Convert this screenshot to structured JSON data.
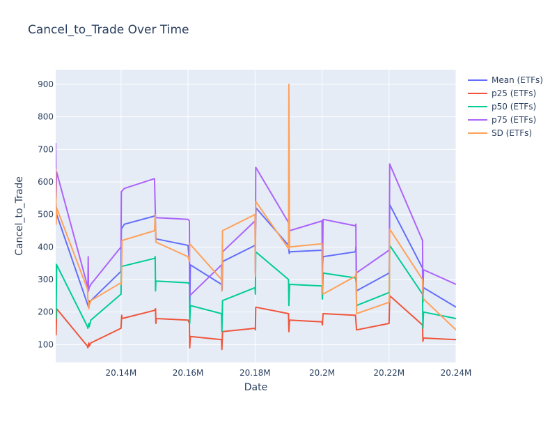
{
  "chart_data": {
    "type": "line",
    "title": "Cancel_to_Trade Over Time",
    "xlabel": "Date",
    "ylabel": "Cancel_to_Trade",
    "xlim": [
      20120500,
      20240000
    ],
    "ylim": [
      45,
      945
    ],
    "x_ticks": [
      20140000,
      20160000,
      20180000,
      20200000,
      20220000,
      20240000
    ],
    "x_tick_labels": [
      "20.14M",
      "20.16M",
      "20.18M",
      "20.2M",
      "20.22M",
      "20.24M"
    ],
    "y_ticks": [
      100,
      200,
      300,
      400,
      500,
      600,
      700,
      800,
      900
    ],
    "grid": true,
    "legend_position": "right",
    "series": [
      {
        "name": "Mean (ETFs)",
        "color": "#636efa",
        "points": [
          [
            20120500,
            540
          ],
          [
            20120800,
            500
          ],
          [
            20130300,
            215
          ],
          [
            20130400,
            235
          ],
          [
            20130500,
            230
          ],
          [
            20131000,
            235
          ],
          [
            20140000,
            325
          ],
          [
            20140100,
            455
          ],
          [
            20141000,
            470
          ],
          [
            20150000,
            495
          ],
          [
            20150200,
            500
          ],
          [
            20150400,
            425
          ],
          [
            20160000,
            405
          ],
          [
            20160400,
            350
          ],
          [
            20160500,
            200
          ],
          [
            20160700,
            345
          ],
          [
            20170000,
            285
          ],
          [
            20170100,
            265
          ],
          [
            20170200,
            270
          ],
          [
            20170300,
            355
          ],
          [
            20180000,
            405
          ],
          [
            20180100,
            410
          ],
          [
            20180300,
            520
          ],
          [
            20190000,
            405
          ],
          [
            20190200,
            380
          ],
          [
            20190400,
            385
          ],
          [
            20200000,
            390
          ],
          [
            20200100,
            340
          ],
          [
            20200300,
            370
          ],
          [
            20210000,
            385
          ],
          [
            20210100,
            400
          ],
          [
            20210200,
            375
          ],
          [
            20210300,
            265
          ],
          [
            20220000,
            320
          ],
          [
            20220100,
            330
          ],
          [
            20220200,
            530
          ],
          [
            20230000,
            335
          ],
          [
            20230100,
            230
          ],
          [
            20230300,
            275
          ],
          [
            20240000,
            215
          ]
        ]
      },
      {
        "name": "p25 (ETFs)",
        "color": "#ef553b",
        "points": [
          [
            20120500,
            165
          ],
          [
            20120600,
            130
          ],
          [
            20120800,
            210
          ],
          [
            20130000,
            95
          ],
          [
            20130100,
            90
          ],
          [
            20130400,
            105
          ],
          [
            20130500,
            95
          ],
          [
            20131000,
            105
          ],
          [
            20140000,
            150
          ],
          [
            20140200,
            190
          ],
          [
            20140300,
            180
          ],
          [
            20150000,
            205
          ],
          [
            20150300,
            210
          ],
          [
            20150400,
            165
          ],
          [
            20150500,
            180
          ],
          [
            20160000,
            175
          ],
          [
            20160400,
            165
          ],
          [
            20160500,
            90
          ],
          [
            20160700,
            125
          ],
          [
            20170000,
            115
          ],
          [
            20170100,
            85
          ],
          [
            20170300,
            140
          ],
          [
            20180000,
            150
          ],
          [
            20180100,
            145
          ],
          [
            20180200,
            215
          ],
          [
            20190000,
            195
          ],
          [
            20190100,
            140
          ],
          [
            20190300,
            175
          ],
          [
            20200000,
            170
          ],
          [
            20200100,
            160
          ],
          [
            20200300,
            195
          ],
          [
            20210000,
            190
          ],
          [
            20210300,
            145
          ],
          [
            20220000,
            165
          ],
          [
            20220100,
            195
          ],
          [
            20220200,
            250
          ],
          [
            20230000,
            160
          ],
          [
            20230100,
            110
          ],
          [
            20230300,
            120
          ],
          [
            20240000,
            115
          ]
        ]
      },
      {
        "name": "p50 (ETFs)",
        "color": "#00cc96",
        "points": [
          [
            20120500,
            350
          ],
          [
            20120600,
            180
          ],
          [
            20120800,
            345
          ],
          [
            20130000,
            155
          ],
          [
            20130100,
            150
          ],
          [
            20130400,
            165
          ],
          [
            20130500,
            155
          ],
          [
            20131000,
            175
          ],
          [
            20140000,
            255
          ],
          [
            20140100,
            340
          ],
          [
            20150000,
            365
          ],
          [
            20150200,
            370
          ],
          [
            20150300,
            265
          ],
          [
            20150400,
            295
          ],
          [
            20160000,
            290
          ],
          [
            20160400,
            285
          ],
          [
            20160500,
            165
          ],
          [
            20160700,
            220
          ],
          [
            20170000,
            195
          ],
          [
            20170100,
            140
          ],
          [
            20170300,
            235
          ],
          [
            20180000,
            275
          ],
          [
            20180100,
            255
          ],
          [
            20180200,
            385
          ],
          [
            20190000,
            300
          ],
          [
            20190100,
            220
          ],
          [
            20190300,
            285
          ],
          [
            20200000,
            280
          ],
          [
            20200100,
            240
          ],
          [
            20200300,
            320
          ],
          [
            20210000,
            305
          ],
          [
            20210200,
            290
          ],
          [
            20210300,
            220
          ],
          [
            20220000,
            260
          ],
          [
            20220100,
            270
          ],
          [
            20220200,
            405
          ],
          [
            20230000,
            255
          ],
          [
            20230100,
            150
          ],
          [
            20230300,
            200
          ],
          [
            20240000,
            180
          ]
        ]
      },
      {
        "name": "p75 (ETFs)",
        "color": "#ab63fa",
        "points": [
          [
            20120500,
            720
          ],
          [
            20120600,
            550
          ],
          [
            20120800,
            630
          ],
          [
            20130000,
            280
          ],
          [
            20130100,
            260
          ],
          [
            20130200,
            370
          ],
          [
            20130300,
            265
          ],
          [
            20130500,
            275
          ],
          [
            20131000,
            285
          ],
          [
            20140000,
            400
          ],
          [
            20140100,
            570
          ],
          [
            20141000,
            580
          ],
          [
            20150000,
            610
          ],
          [
            20150200,
            520
          ],
          [
            20150300,
            490
          ],
          [
            20160000,
            485
          ],
          [
            20160400,
            480
          ],
          [
            20160500,
            250
          ],
          [
            20170000,
            345
          ],
          [
            20170100,
            290
          ],
          [
            20170300,
            385
          ],
          [
            20180000,
            480
          ],
          [
            20180100,
            320
          ],
          [
            20180200,
            645
          ],
          [
            20190000,
            475
          ],
          [
            20190100,
            410
          ],
          [
            20190300,
            450
          ],
          [
            20200000,
            480
          ],
          [
            20200100,
            280
          ],
          [
            20200300,
            485
          ],
          [
            20210000,
            465
          ],
          [
            20210100,
            470
          ],
          [
            20210200,
            320
          ],
          [
            20220000,
            390
          ],
          [
            20220100,
            395
          ],
          [
            20220200,
            655
          ],
          [
            20230000,
            420
          ],
          [
            20230100,
            250
          ],
          [
            20230300,
            330
          ],
          [
            20240000,
            285
          ]
        ]
      },
      {
        "name": "SD (ETFs)",
        "color": "#ffa15a",
        "points": [
          [
            20120500,
            640
          ],
          [
            20120600,
            470
          ],
          [
            20120800,
            520
          ],
          [
            20130000,
            270
          ],
          [
            20130100,
            240
          ],
          [
            20130300,
            230
          ],
          [
            20130400,
            210
          ],
          [
            20130500,
            220
          ],
          [
            20131000,
            235
          ],
          [
            20140000,
            290
          ],
          [
            20140100,
            285
          ],
          [
            20140300,
            420
          ],
          [
            20150000,
            450
          ],
          [
            20150200,
            500
          ],
          [
            20150400,
            415
          ],
          [
            20160000,
            370
          ],
          [
            20160400,
            355
          ],
          [
            20160500,
            410
          ],
          [
            20170000,
            300
          ],
          [
            20170100,
            265
          ],
          [
            20170300,
            450
          ],
          [
            20180000,
            500
          ],
          [
            20180100,
            310
          ],
          [
            20180200,
            540
          ],
          [
            20190000,
            395
          ],
          [
            20190100,
            900
          ],
          [
            20190300,
            400
          ],
          [
            20200000,
            410
          ],
          [
            20200100,
            275
          ],
          [
            20200300,
            255
          ],
          [
            20210000,
            310
          ],
          [
            20210200,
            325
          ],
          [
            20210300,
            195
          ],
          [
            20220000,
            230
          ],
          [
            20220100,
            250
          ],
          [
            20220200,
            455
          ],
          [
            20230000,
            300
          ],
          [
            20230100,
            265
          ],
          [
            20230300,
            240
          ],
          [
            20240000,
            145
          ]
        ]
      }
    ]
  }
}
